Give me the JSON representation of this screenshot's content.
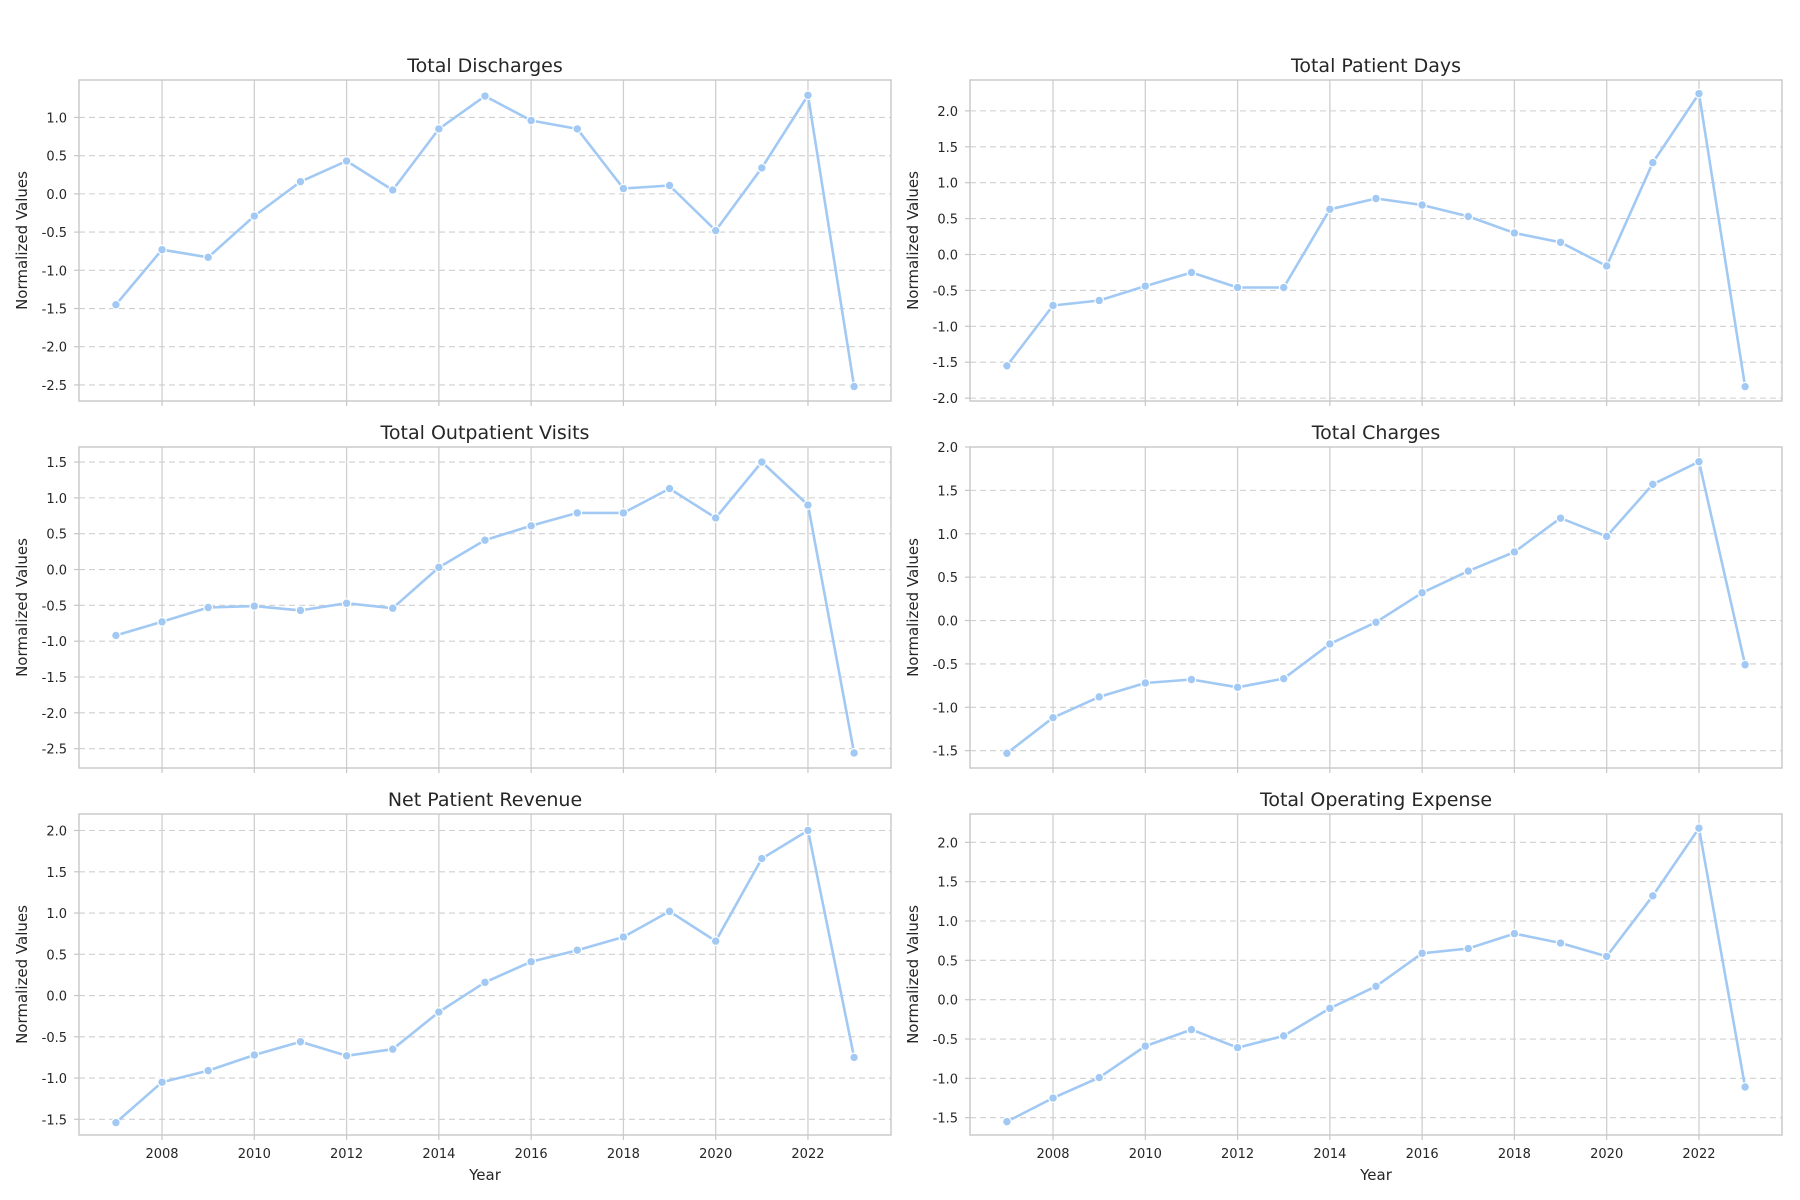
{
  "colors": {
    "line": "#a1c9f4"
  },
  "x_tick_labels": [
    "2008",
    "2010",
    "2012",
    "2014",
    "2016",
    "2018",
    "2020",
    "2022"
  ],
  "chart_data": [
    {
      "type": "line",
      "title": "Total Discharges",
      "xlabel": "",
      "ylabel": "Normalized Values",
      "x": [
        2007,
        2008,
        2009,
        2010,
        2011,
        2012,
        2013,
        2014,
        2015,
        2016,
        2017,
        2018,
        2019,
        2020,
        2021,
        2022,
        2023
      ],
      "values": [
        -1.45,
        -0.73,
        -0.83,
        -0.29,
        0.16,
        0.43,
        0.05,
        0.85,
        1.28,
        0.96,
        0.85,
        0.07,
        0.11,
        -0.48,
        0.34,
        1.29,
        -2.52
      ],
      "xlim": [
        2006.2,
        2023.8
      ],
      "ylim": [
        -2.71,
        1.49
      ],
      "yticks": [
        "-2.5",
        "-2.0",
        "-1.5",
        "-1.0",
        "-0.5",
        "0.0",
        "0.5",
        "1.0"
      ],
      "ytick_values": [
        -2.5,
        -2.0,
        -1.5,
        -1.0,
        -0.5,
        0.0,
        0.5,
        1.0
      ],
      "grid": true
    },
    {
      "type": "line",
      "title": "Total Patient Days",
      "xlabel": "",
      "ylabel": "Normalized Values",
      "x": [
        2007,
        2008,
        2009,
        2010,
        2011,
        2012,
        2013,
        2014,
        2015,
        2016,
        2017,
        2018,
        2019,
        2020,
        2021,
        2022,
        2023
      ],
      "values": [
        -1.55,
        -0.71,
        -0.64,
        -0.44,
        -0.25,
        -0.46,
        -0.46,
        0.63,
        0.78,
        0.69,
        0.53,
        0.3,
        0.17,
        -0.16,
        1.28,
        2.24,
        -1.84
      ],
      "xlim": [
        2006.2,
        2023.8
      ],
      "ylim": [
        -2.04,
        2.43
      ],
      "yticks": [
        "-2.0",
        "-1.5",
        "-1.0",
        "-0.5",
        "0.0",
        "0.5",
        "1.0",
        "1.5",
        "2.0"
      ],
      "ytick_values": [
        -2.0,
        -1.5,
        -1.0,
        -0.5,
        0.0,
        0.5,
        1.0,
        1.5,
        2.0
      ],
      "grid": true
    },
    {
      "type": "line",
      "title": "Total Outpatient Visits",
      "xlabel": "",
      "ylabel": "Normalized Values",
      "x": [
        2007,
        2008,
        2009,
        2010,
        2011,
        2012,
        2013,
        2014,
        2015,
        2016,
        2017,
        2018,
        2019,
        2020,
        2021,
        2022,
        2023
      ],
      "values": [
        -0.92,
        -0.73,
        -0.53,
        -0.51,
        -0.57,
        -0.47,
        -0.54,
        0.03,
        0.41,
        0.61,
        0.79,
        0.79,
        1.13,
        0.72,
        1.5,
        0.9,
        -2.56
      ],
      "xlim": [
        2006.2,
        2023.8
      ],
      "ylim": [
        -2.77,
        1.71
      ],
      "yticks": [
        "-2.5",
        "-2.0",
        "-1.5",
        "-1.0",
        "-0.5",
        "0.0",
        "0.5",
        "1.0",
        "1.5"
      ],
      "ytick_values": [
        -2.5,
        -2.0,
        -1.5,
        -1.0,
        -0.5,
        0.0,
        0.5,
        1.0,
        1.5
      ],
      "grid": true
    },
    {
      "type": "line",
      "title": "Total Charges",
      "xlabel": "",
      "ylabel": "Normalized Values",
      "x": [
        2007,
        2008,
        2009,
        2010,
        2011,
        2012,
        2013,
        2014,
        2015,
        2016,
        2017,
        2018,
        2019,
        2020,
        2021,
        2022,
        2023
      ],
      "values": [
        -1.53,
        -1.12,
        -0.88,
        -0.72,
        -0.68,
        -0.77,
        -0.67,
        -0.27,
        -0.02,
        0.32,
        0.57,
        0.79,
        1.18,
        0.97,
        1.57,
        1.83,
        -0.51
      ],
      "xlim": [
        2006.2,
        2023.8
      ],
      "ylim": [
        -1.7,
        2.0
      ],
      "yticks": [
        "-1.5",
        "-1.0",
        "-0.5",
        "0.0",
        "0.5",
        "1.0",
        "1.5",
        "2.0"
      ],
      "ytick_values": [
        -1.5,
        -1.0,
        -0.5,
        0.0,
        0.5,
        1.0,
        1.5,
        2.0
      ],
      "grid": true
    },
    {
      "type": "line",
      "title": "Net Patient Revenue",
      "xlabel": "Year",
      "ylabel": "Normalized Values",
      "x": [
        2007,
        2008,
        2009,
        2010,
        2011,
        2012,
        2013,
        2014,
        2015,
        2016,
        2017,
        2018,
        2019,
        2020,
        2021,
        2022,
        2023
      ],
      "values": [
        -1.54,
        -1.05,
        -0.91,
        -0.72,
        -0.56,
        -0.73,
        -0.65,
        -0.2,
        0.16,
        0.41,
        0.55,
        0.71,
        1.02,
        0.66,
        1.66,
        2.0,
        -0.75
      ],
      "xlim": [
        2006.2,
        2023.8
      ],
      "ylim": [
        -1.69,
        2.2
      ],
      "yticks": [
        "-1.5",
        "-1.0",
        "-0.5",
        "0.0",
        "0.5",
        "1.0",
        "1.5",
        "2.0"
      ],
      "ytick_values": [
        -1.5,
        -1.0,
        -0.5,
        0.0,
        0.5,
        1.0,
        1.5,
        2.0
      ],
      "grid": true
    },
    {
      "type": "line",
      "title": "Total Operating Expense",
      "xlabel": "Year",
      "ylabel": "Normalized Values",
      "x": [
        2007,
        2008,
        2009,
        2010,
        2011,
        2012,
        2013,
        2014,
        2015,
        2016,
        2017,
        2018,
        2019,
        2020,
        2021,
        2022,
        2023
      ],
      "values": [
        -1.55,
        -1.25,
        -0.99,
        -0.59,
        -0.38,
        -0.61,
        -0.46,
        -0.11,
        0.17,
        0.59,
        0.65,
        0.84,
        0.72,
        0.55,
        1.32,
        2.18,
        -1.11
      ],
      "xlim": [
        2006.2,
        2023.8
      ],
      "ylim": [
        -1.72,
        2.36
      ],
      "yticks": [
        "-1.5",
        "-1.0",
        "-0.5",
        "0.0",
        "0.5",
        "1.0",
        "1.5",
        "2.0"
      ],
      "ytick_values": [
        -1.5,
        -1.0,
        -0.5,
        0.0,
        0.5,
        1.0,
        1.5,
        2.0
      ],
      "grid": true
    }
  ]
}
